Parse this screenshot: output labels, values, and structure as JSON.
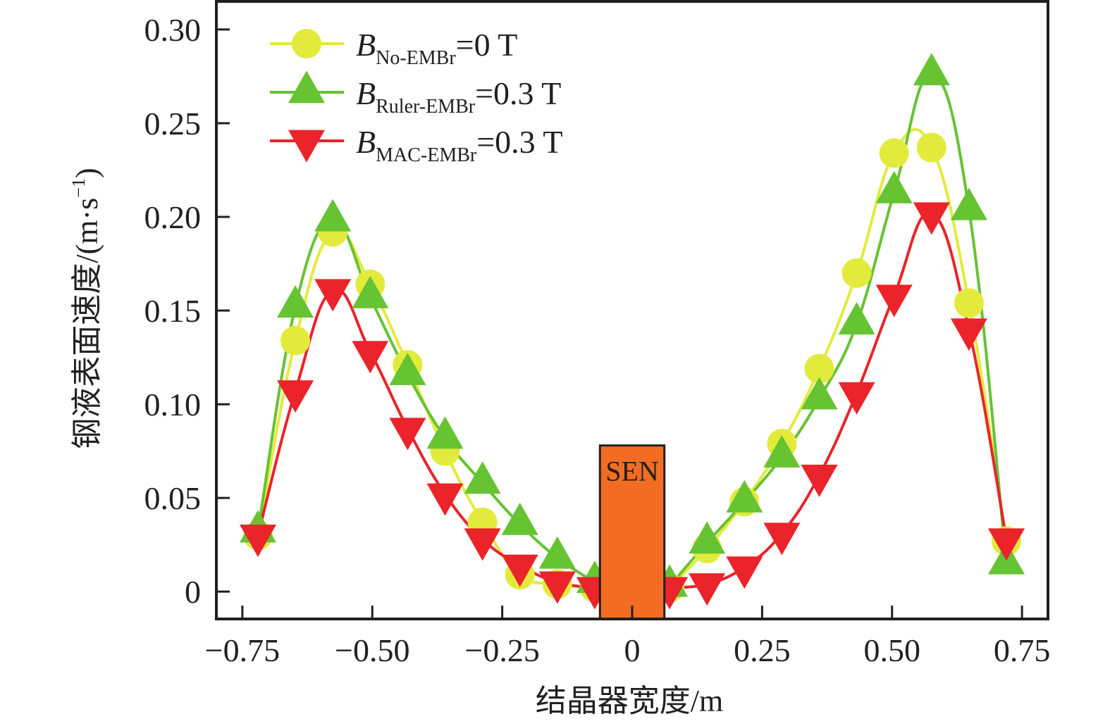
{
  "chart_data": {
    "type": "line",
    "title": "",
    "xlabel": "结晶器宽度/m",
    "ylabel": "钢液表面速度/(m·s⁻¹)",
    "ylabel_parts": {
      "main": "钢液表面速度/(m·s",
      "sup": "−1",
      "close": ")"
    },
    "xlim": [
      -0.8,
      0.8
    ],
    "ylim": [
      -0.0146,
      0.315
    ],
    "xticks": [
      -0.75,
      -0.5,
      -0.25,
      0,
      0.25,
      0.5,
      0.75
    ],
    "xtick_labels": [
      "−0.75",
      "−0.50",
      "−0.25",
      "0",
      "0.25",
      "0.50",
      "0.75"
    ],
    "yticks": [
      0,
      0.05,
      0.1,
      0.15,
      0.2,
      0.25,
      0.3
    ],
    "ytick_labels": [
      "0",
      "0.05",
      "0.10",
      "0.15",
      "0.20",
      "0.25",
      "0.30"
    ],
    "grid": false,
    "legend_position": "top-left",
    "x": [
      -0.72,
      -0.648,
      -0.576,
      -0.504,
      -0.432,
      -0.36,
      -0.288,
      -0.216,
      -0.144,
      -0.072,
      0.072,
      0.144,
      0.216,
      0.288,
      0.36,
      0.432,
      0.504,
      0.576,
      0.648,
      0.72
    ],
    "series": [
      {
        "name": "B No-EMBr = 0 T",
        "legend": {
          "symbol": "B",
          "subscript": "No-EMBr",
          "suffix": "=0 T"
        },
        "marker": "circle",
        "color": "#e2eb3b",
        "values": [
          0.03,
          0.134,
          0.192,
          0.164,
          0.121,
          0.075,
          0.037,
          0.009,
          0.004,
          0.002,
          0.002,
          0.023,
          0.048,
          0.079,
          0.119,
          0.17,
          0.234,
          0.237,
          0.154,
          0.027
        ]
      },
      {
        "name": "B Ruler-EMBr = 0.3 T",
        "legend": {
          "symbol": "B",
          "subscript": "Ruler-EMBr",
          "suffix": "=0.3 T"
        },
        "marker": "triangle-up",
        "color": "#66c332",
        "values": [
          0.032,
          0.152,
          0.198,
          0.157,
          0.116,
          0.082,
          0.058,
          0.036,
          0.018,
          0.005,
          0.003,
          0.026,
          0.048,
          0.072,
          0.103,
          0.143,
          0.213,
          0.276,
          0.204,
          0.015
        ]
      },
      {
        "name": "B MAC-EMBr = 0.3 T",
        "legend": {
          "symbol": "B",
          "subscript": "MAC-EMBr",
          "suffix": "=0.3 T"
        },
        "marker": "triangle-down",
        "color": "#ea242a",
        "values": [
          0.03,
          0.107,
          0.161,
          0.128,
          0.087,
          0.052,
          0.028,
          0.014,
          0.005,
          0.002,
          0.002,
          0.004,
          0.013,
          0.031,
          0.062,
          0.106,
          0.158,
          0.202,
          0.14,
          0.028
        ]
      }
    ],
    "annotations": [
      {
        "type": "box",
        "label": "SEN",
        "x_range": [
          -0.062,
          0.062
        ],
        "y_top": 0.078,
        "color": "#f26d23"
      }
    ]
  }
}
